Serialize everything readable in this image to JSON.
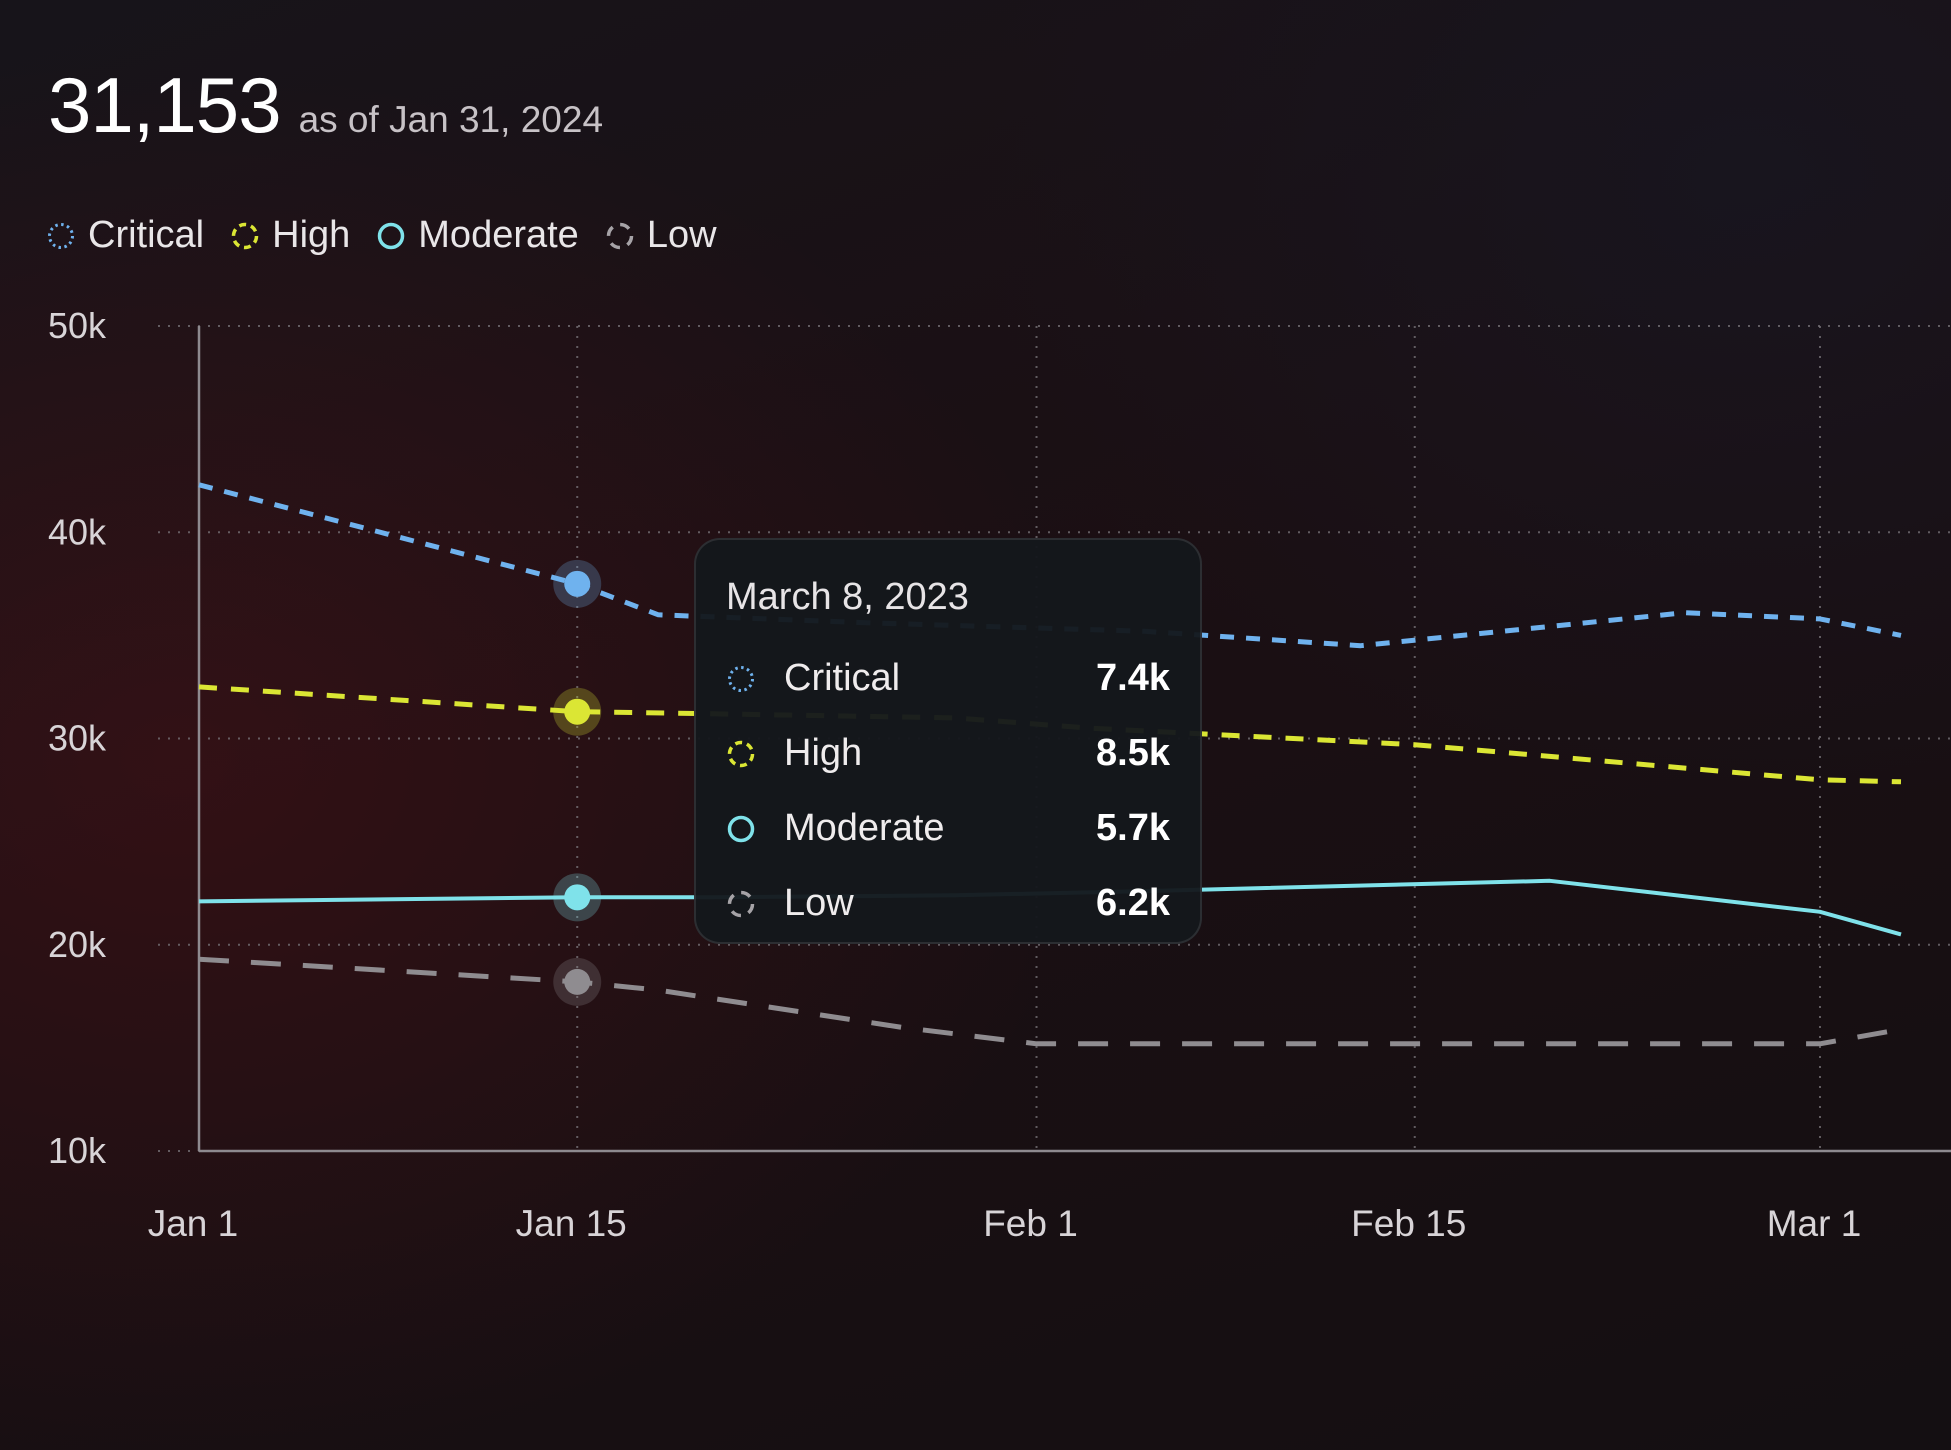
{
  "header": {
    "total": "31,153",
    "as_of": "as of Jan 31, 2024"
  },
  "colors": {
    "critical": "#6fb2ee",
    "high": "#dbe634",
    "moderate": "#7fe2ea",
    "low": "#8f8c90",
    "grid": "#7a767b",
    "axis": "#d8d4d7"
  },
  "legend": [
    {
      "key": "critical",
      "label": "Critical",
      "icon": "dotted-circle-icon"
    },
    {
      "key": "high",
      "label": "High",
      "icon": "dashed-circle-icon"
    },
    {
      "key": "moderate",
      "label": "Moderate",
      "icon": "ring-icon"
    },
    {
      "key": "low",
      "label": "Low",
      "icon": "broken-circle-icon"
    }
  ],
  "tooltip": {
    "title": "March 8, 2023",
    "rows": [
      {
        "key": "critical",
        "label": "Critical",
        "value": "7.4k",
        "icon": "dotted-circle-icon"
      },
      {
        "key": "high",
        "label": "High",
        "value": "8.5k",
        "icon": "dashed-circle-icon"
      },
      {
        "key": "moderate",
        "label": "Moderate",
        "value": "5.7k",
        "icon": "ring-icon"
      },
      {
        "key": "low",
        "label": "Low",
        "value": "6.2k",
        "icon": "broken-circle-icon"
      }
    ]
  },
  "chart_data": {
    "type": "line",
    "title": "",
    "xlabel": "",
    "ylabel": "",
    "x_ticks": [
      "Jan 1",
      "Jan 15",
      "Feb 1",
      "Feb 15",
      "Mar 1"
    ],
    "y_ticks": [
      "10k",
      "20k",
      "30k",
      "40k",
      "50k"
    ],
    "ylim": [
      10000,
      50000
    ],
    "grid": true,
    "legend_placement": "top-left",
    "highlighted_x": "Jan 15",
    "series": [
      {
        "name": "Critical",
        "key": "critical",
        "style": "dotted",
        "points": [
          [
            "Jan 1",
            42300
          ],
          [
            "Jan 15",
            37500
          ],
          [
            "Jan 18",
            36000
          ],
          [
            "Jan 26",
            35600
          ],
          [
            "Feb 5",
            35200
          ],
          [
            "Feb 13",
            34500
          ],
          [
            "Feb 25",
            36100
          ],
          [
            "Mar 1",
            35800
          ],
          [
            "Mar 4",
            35000
          ]
        ]
      },
      {
        "name": "High",
        "key": "high",
        "style": "dashed",
        "points": [
          [
            "Jan 1",
            32500
          ],
          [
            "Jan 15",
            31300
          ],
          [
            "Jan 20",
            31200
          ],
          [
            "Jan 29",
            31000
          ],
          [
            "Feb 3",
            30500
          ],
          [
            "Feb 15",
            29700
          ],
          [
            "Mar 1",
            28000
          ],
          [
            "Mar 4",
            27900
          ]
        ]
      },
      {
        "name": "Moderate",
        "key": "moderate",
        "style": "solid",
        "points": [
          [
            "Jan 1",
            22100
          ],
          [
            "Jan 15",
            22300
          ],
          [
            "Jan 20",
            22300
          ],
          [
            "Jan 29",
            22400
          ],
          [
            "Feb 5",
            22600
          ],
          [
            "Feb 20",
            23100
          ],
          [
            "Mar 1",
            21600
          ],
          [
            "Mar 4",
            20500
          ]
        ]
      },
      {
        "name": "Low",
        "key": "low",
        "style": "long-dashed",
        "points": [
          [
            "Jan 1",
            19300
          ],
          [
            "Jan 15",
            18200
          ],
          [
            "Jan 18",
            17800
          ],
          [
            "Jan 27",
            16000
          ],
          [
            "Feb 1",
            15200
          ],
          [
            "Feb 15",
            15200
          ],
          [
            "Mar 1",
            15200
          ],
          [
            "Mar 4",
            15900
          ]
        ]
      }
    ]
  }
}
